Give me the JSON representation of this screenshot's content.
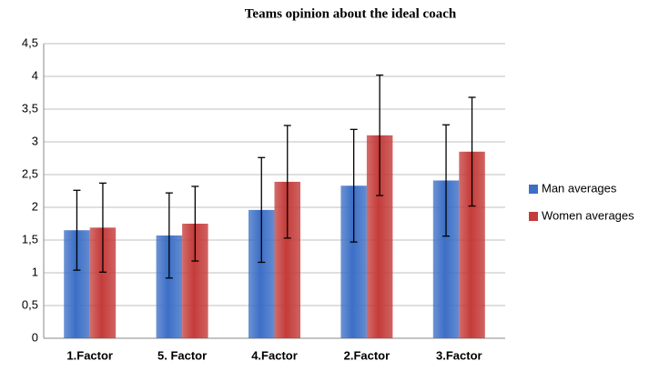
{
  "chart_data": {
    "type": "bar",
    "title": "Teams opinion about the ideal coach",
    "categories": [
      "1.Factor",
      "5. Factor",
      "4.Factor",
      "2.Factor",
      "3.Factor"
    ],
    "series": [
      {
        "name": "Man averages",
        "color": "#3c6fc6",
        "values": [
          1.65,
          1.57,
          1.96,
          2.33,
          2.41
        ],
        "errors": [
          0.61,
          0.65,
          0.8,
          0.86,
          0.85
        ]
      },
      {
        "name": "Women averages",
        "color": "#c43c3a",
        "values": [
          1.69,
          1.75,
          2.39,
          3.1,
          2.85
        ],
        "errors": [
          0.68,
          0.57,
          0.86,
          0.92,
          0.83
        ]
      }
    ],
    "ylim": [
      0,
      4.5
    ],
    "yticks": [
      0,
      {
        "value": 0.5,
        "label": "0,5"
      },
      1,
      {
        "value": 1.5,
        "label": "1,5"
      },
      2,
      {
        "value": 2.5,
        "label": "2,5"
      },
      3,
      {
        "value": 3.5,
        "label": "3,5"
      },
      4,
      {
        "value": 4.5,
        "label": "4,5"
      }
    ],
    "grid": true,
    "legend": "right"
  }
}
